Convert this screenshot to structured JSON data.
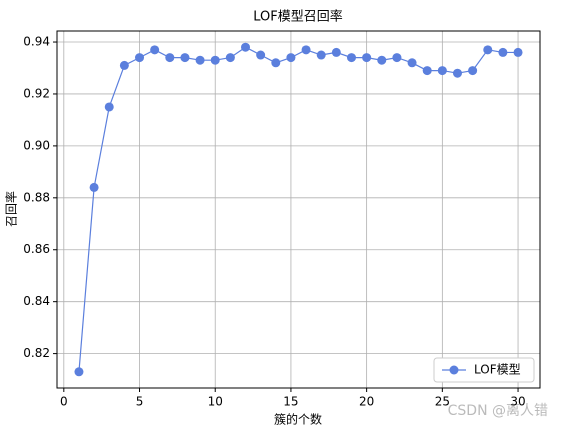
{
  "chart_data": {
    "type": "line",
    "title": "LOF模型召回率",
    "x_label": "簇的个数",
    "y_label": "召回率",
    "x": [
      1,
      2,
      3,
      4,
      5,
      6,
      7,
      8,
      9,
      10,
      11,
      12,
      13,
      14,
      15,
      16,
      17,
      18,
      19,
      20,
      21,
      22,
      23,
      24,
      25,
      26,
      27,
      28,
      29,
      30
    ],
    "series": [
      {
        "name": "LOF模型",
        "color": "#5b7fdd",
        "values": [
          0.813,
          0.884,
          0.915,
          0.931,
          0.934,
          0.937,
          0.934,
          0.934,
          0.933,
          0.933,
          0.934,
          0.938,
          0.935,
          0.932,
          0.934,
          0.937,
          0.935,
          0.936,
          0.934,
          0.934,
          0.933,
          0.934,
          0.932,
          0.929,
          0.929,
          0.928,
          0.929,
          0.937,
          0.936,
          0.936
        ]
      }
    ],
    "xlim": [
      -0.45,
      31.45
    ],
    "ylim": [
      0.80675,
      0.94425
    ],
    "xticks": [
      0,
      5,
      10,
      15,
      20,
      25,
      30
    ],
    "yticks": [
      {
        "value": 0.82,
        "label": "0.82"
      },
      {
        "value": 0.84,
        "label": "0.84"
      },
      {
        "value": 0.86,
        "label": "0.86"
      },
      {
        "value": 0.88,
        "label": "0.88"
      },
      {
        "value": 0.9,
        "label": "0.90"
      },
      {
        "value": 0.92,
        "label": "0.92"
      },
      {
        "value": 0.94,
        "label": "0.94"
      }
    ],
    "grid": true,
    "legend": "lower right",
    "watermark": "CSDN @离人错"
  }
}
